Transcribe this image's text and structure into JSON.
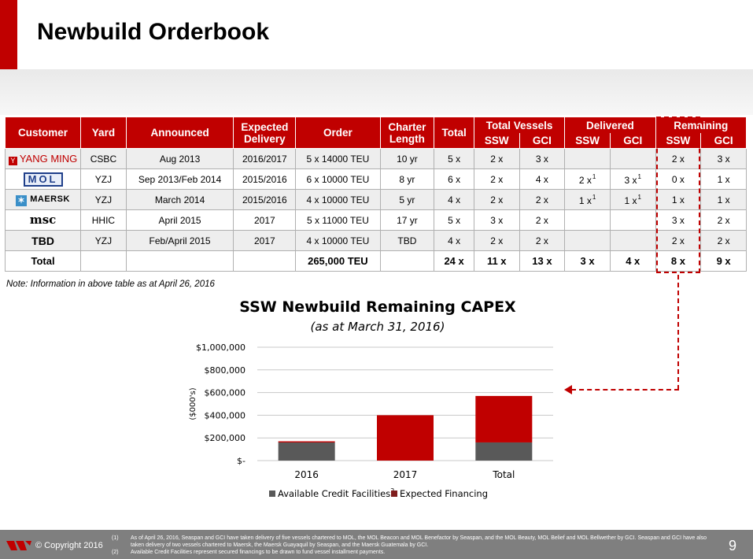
{
  "title": "Newbuild Orderbook",
  "table": {
    "headers": {
      "customer": "Customer",
      "yard": "Yard",
      "announced": "Announced",
      "expected_delivery": [
        "Expected",
        "Delivery"
      ],
      "order": "Order",
      "charter_length": [
        "Charter",
        "Length"
      ],
      "total": "Total",
      "total_vessels": "Total Vessels",
      "delivered": "Delivered",
      "remaining": "Remaining",
      "ssw": "SSW",
      "gci": "GCI"
    },
    "rows": [
      {
        "customer": "YANG MING",
        "yard": "CSBC",
        "announced": "Aug 2013",
        "delivery": "2016/2017",
        "order": "5 x 14000 TEU",
        "charter": "10 yr",
        "total": "5 x",
        "tv_ssw": "2 x",
        "tv_gci": "3 x",
        "del_ssw": "",
        "del_gci": "",
        "del_ssw_fn": "",
        "del_gci_fn": "",
        "rem_ssw": "2 x",
        "rem_gci": "3 x"
      },
      {
        "customer": "MOL",
        "yard": "YZJ",
        "announced": "Sep 2013/Feb 2014",
        "delivery": "2015/2016",
        "order": "6 x 10000 TEU",
        "charter": "8 yr",
        "total": "6 x",
        "tv_ssw": "2 x",
        "tv_gci": "4 x",
        "del_ssw": "2 x",
        "del_gci": "3 x",
        "del_ssw_fn": "1",
        "del_gci_fn": "1",
        "rem_ssw": "0 x",
        "rem_gci": "1 x"
      },
      {
        "customer": "MAERSK",
        "yard": "YZJ",
        "announced": "March 2014",
        "delivery": "2015/2016",
        "order": "4 x 10000 TEU",
        "charter": "5 yr",
        "total": "4 x",
        "tv_ssw": "2 x",
        "tv_gci": "2 x",
        "del_ssw": "1 x",
        "del_gci": "1 x",
        "del_ssw_fn": "1",
        "del_gci_fn": "1",
        "rem_ssw": "1 x",
        "rem_gci": "1 x"
      },
      {
        "customer": "msc",
        "yard": "HHIC",
        "announced": "April 2015",
        "delivery": "2017",
        "order": "5 x 11000 TEU",
        "charter": "17 yr",
        "total": "5 x",
        "tv_ssw": "3 x",
        "tv_gci": "2 x",
        "del_ssw": "",
        "del_gci": "",
        "del_ssw_fn": "",
        "del_gci_fn": "",
        "rem_ssw": "3 x",
        "rem_gci": "2 x"
      },
      {
        "customer": "TBD",
        "yard": "YZJ",
        "announced": "Feb/April 2015",
        "delivery": "2017",
        "order": "4 x 10000 TEU",
        "charter": "TBD",
        "total": "4 x",
        "tv_ssw": "2 x",
        "tv_gci": "2 x",
        "del_ssw": "",
        "del_gci": "",
        "del_ssw_fn": "",
        "del_gci_fn": "",
        "rem_ssw": "2 x",
        "rem_gci": "2 x"
      }
    ],
    "total_row": {
      "label": "Total",
      "order": "265,000 TEU",
      "total": "24 x",
      "tv_ssw": "11 x",
      "tv_gci": "13 x",
      "del_ssw": "3 x",
      "del_gci": "4 x",
      "rem_ssw": "8 x",
      "rem_gci": "9 x"
    }
  },
  "note": "Note: Information in above table as at April 26, 2016",
  "chart_data": {
    "type": "bar",
    "stacked": true,
    "title": "SSW Newbuild Remaining CAPEX",
    "subtitle": "(as at March 31, 2016)",
    "ylabel": "($000's)",
    "categories": [
      "2016",
      "2017",
      "Total"
    ],
    "series": [
      {
        "name": "Available Credit Facilities",
        "superscript": "2",
        "values": [
          160000,
          0,
          160000
        ],
        "color": "#595959"
      },
      {
        "name": "Expected Financing",
        "values": [
          10000,
          400000,
          410000
        ],
        "color": "#c00000"
      }
    ],
    "ylim": [
      0,
      1000000
    ],
    "yticks": [
      0,
      200000,
      400000,
      600000,
      800000,
      1000000
    ],
    "ytick_labels": [
      "$-",
      "$200,000",
      "$400,000",
      "$600,000",
      "$800,000",
      "$1,000,000"
    ],
    "grid": true,
    "legend": "bottom"
  },
  "footer": {
    "copyright": "© Copyright 2016",
    "page_number": "9",
    "footnotes": [
      {
        "num": "(1)",
        "text": "As of April 26, 2016, Seaspan and GCI have taken delivery of  five vessels chartered to MOL, the MOL Beacon and MOL Benefactor by Seaspan, and the MOL Beauty, MOL Belief and MOL Bellwether by GCI. Seaspan and GCI have also taken delivery of two vessels chartered to Maersk, the Maersk Guayaquil by Seaspan, and the Maersk Guatemala by GCI."
      },
      {
        "num": "(2)",
        "text": "Available Credit Facilities represent secured financings to be drawn to fund vessel installment payments."
      }
    ]
  },
  "colors": {
    "accent": "#c00000",
    "footer": "#7f7f7f",
    "dark_bar": "#595959"
  }
}
